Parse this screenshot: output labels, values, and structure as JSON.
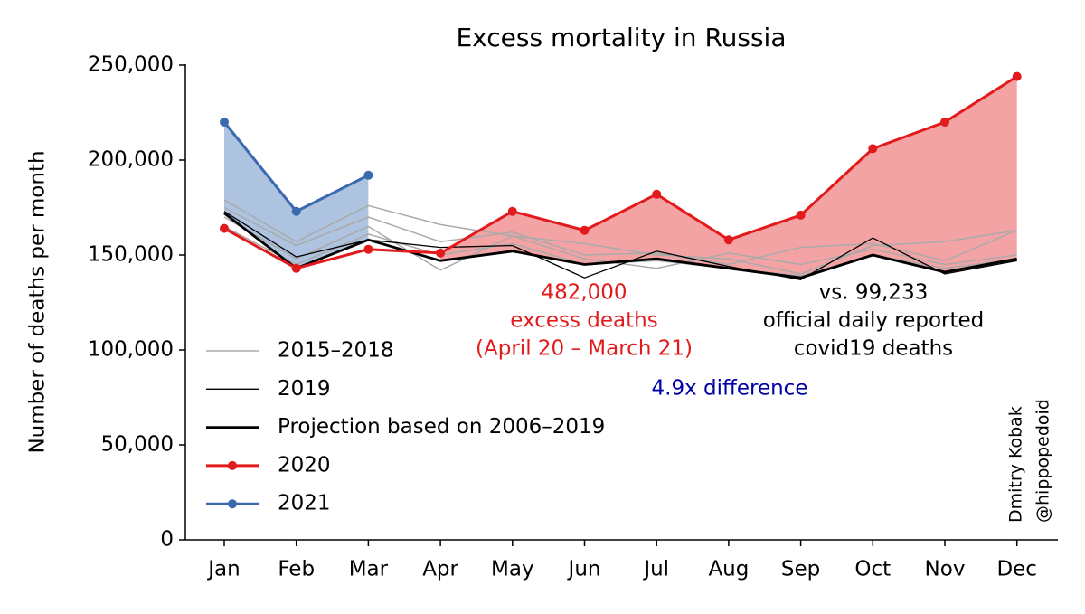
{
  "chart_data": {
    "type": "line",
    "title": "Excess mortality in Russia",
    "ylabel": "Number of deaths per month",
    "categories": [
      "Jan",
      "Feb",
      "Mar",
      "Apr",
      "May",
      "Jun",
      "Jul",
      "Aug",
      "Sep",
      "Oct",
      "Nov",
      "Dec"
    ],
    "ylim": [
      0,
      250000
    ],
    "yticks": [
      0,
      {
        "value": 50000,
        "label": "50,000"
      },
      {
        "value": 100000,
        "label": "100,000"
      },
      {
        "value": 150000,
        "label": "150,000"
      },
      {
        "value": 200000,
        "label": "200,000"
      },
      {
        "value": 250000,
        "label": "250,000"
      }
    ],
    "background_series": {
      "name": "2015–2018",
      "color": "#aaaaaa",
      "lines": [
        [
          179000,
          157000,
          176000,
          166000,
          160000,
          156000,
          150000,
          148000,
          140000,
          155000,
          157000,
          163000
        ],
        [
          175000,
          155000,
          170000,
          157000,
          162000,
          150000,
          151000,
          145000,
          154000,
          156000,
          147000,
          163000
        ],
        [
          170000,
          148000,
          165000,
          142000,
          160000,
          148000,
          143000,
          151000,
          145000,
          153000,
          145000,
          150000
        ],
        [
          165000,
          145000,
          161000,
          150000,
          156000,
          145000,
          147000,
          143000,
          139000,
          150000,
          143000,
          148000
        ]
      ]
    },
    "series": [
      {
        "name": "2019",
        "color": "#000000",
        "values": [
          173000,
          149000,
          158000,
          154000,
          155000,
          138000,
          152000,
          144000,
          137000,
          159000,
          140000,
          147000
        ]
      },
      {
        "name": "Projection based on 2006–2019",
        "color": "#000000",
        "values": [
          172000,
          143000,
          158000,
          147000,
          152000,
          145000,
          148000,
          143000,
          138000,
          150000,
          141000,
          148000
        ]
      },
      {
        "name": "2020",
        "color": "#e31a1c",
        "fill": "#f4a3a4",
        "values": [
          164000,
          143000,
          153000,
          151000,
          173000,
          163000,
          182000,
          158000,
          171000,
          206000,
          220000,
          244000
        ]
      },
      {
        "name": "2021",
        "color": "#3a6aad",
        "fill": "#adc3e0",
        "values": [
          220000,
          173000,
          192000,
          null,
          null,
          null,
          null,
          null,
          null,
          null,
          null,
          null
        ]
      }
    ],
    "annotations": {
      "excess": [
        "482,000",
        "excess deaths",
        "(April 20 – March 21)"
      ],
      "official": [
        "vs. 99,233",
        "official daily reported",
        "covid19 deaths"
      ],
      "ratio": "4.9x difference",
      "credit": [
        "Dmitry Kobak",
        "@hippopedoid"
      ]
    }
  }
}
